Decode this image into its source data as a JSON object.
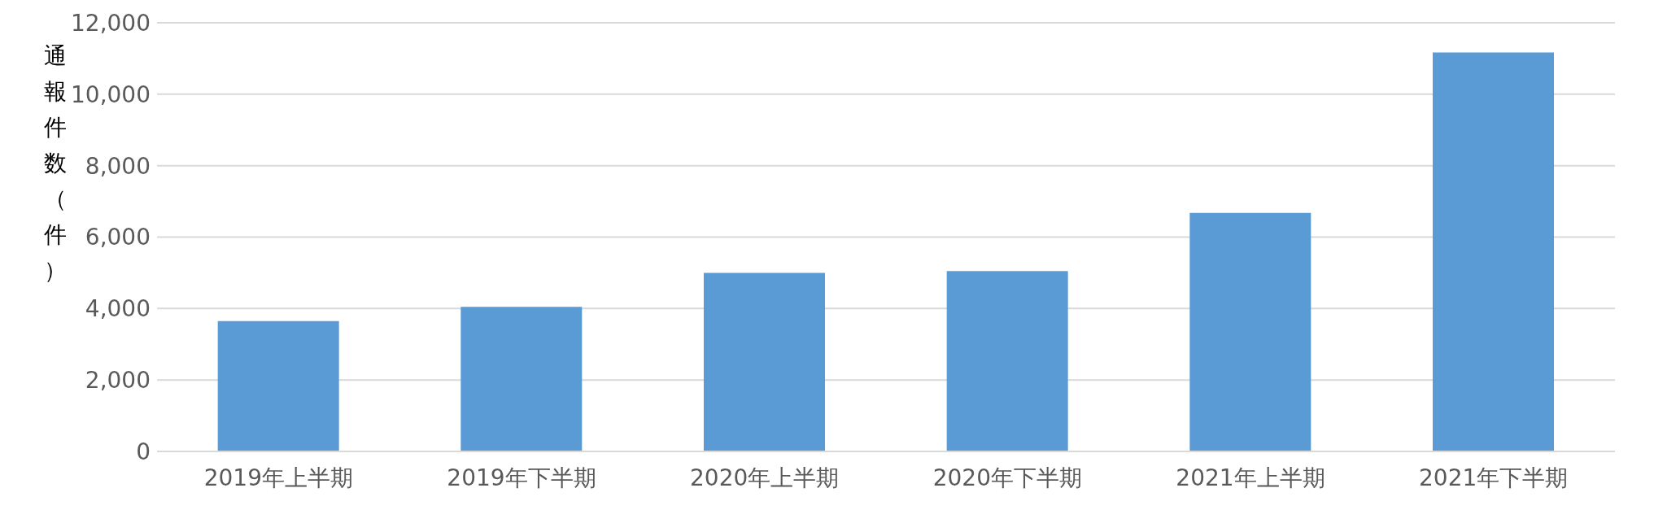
{
  "chart_data": {
    "type": "bar",
    "ylabel": "通報件数（件）",
    "categories": [
      "2019年上半期",
      "2019年下半期",
      "2020年上半期",
      "2020年下半期",
      "2021年上半期",
      "2021年下半期"
    ],
    "values": [
      3650,
      4050,
      5000,
      5050,
      6680,
      11170
    ],
    "color": "#5b9bd5",
    "ylim": [
      0,
      12000
    ],
    "yticks": [
      0,
      {
        "value": 2000,
        "label": "2,000"
      },
      {
        "value": 4000,
        "label": "4,000"
      },
      {
        "value": 6000,
        "label": "6,000"
      },
      {
        "value": 8000,
        "label": "8,000"
      },
      {
        "value": 10000,
        "label": "10,000"
      },
      {
        "value": 12000,
        "label": "12,000"
      }
    ],
    "grid": "y",
    "legend": false
  }
}
